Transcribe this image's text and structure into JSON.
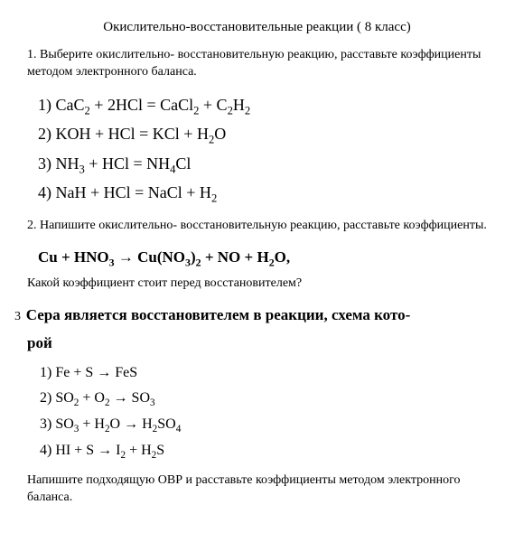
{
  "title": "Окислительно-восстановительные реакции ( 8 класс)",
  "task1": {
    "text": "1. Выберите окислительно- восстановительную реакцию, расставьте коэффициенты методом электронного баланса.",
    "eq1": "1) CaC₂ + 2HCl = CaCl₂ + C₂H₂",
    "eq2": "2) KOH + HCl = KCl + H₂O",
    "eq3": "3) NH₃ + HCl = NH₄Cl",
    "eq4": "4) NaH + HCl = NaCl + H₂"
  },
  "task2": {
    "text": "2. Напишите окислительно- восстановительную реакцию, расставьте коэффициенты.",
    "eq": "Cu + HNO₃  →  Cu(NO₃)₂ + NO + H₂O,",
    "sub": "Какой коэффициент стоит перед восстановителем?"
  },
  "task3": {
    "prefix": "3",
    "heading1": "Сера является восстановителем в реакции, схема кото-",
    "heading2": "рой",
    "eq1": "1) Fe + S  →  FeS",
    "eq2": "2) SO₂ + O₂  →  SO₃",
    "eq3": "3) SO₃ + H₂O  →  H₂SO₄",
    "eq4": "4) HI + S  →  I₂ + H₂S",
    "footer": "Напишите подходящую ОВР и расставьте коэффициенты методом электронного баланса."
  }
}
